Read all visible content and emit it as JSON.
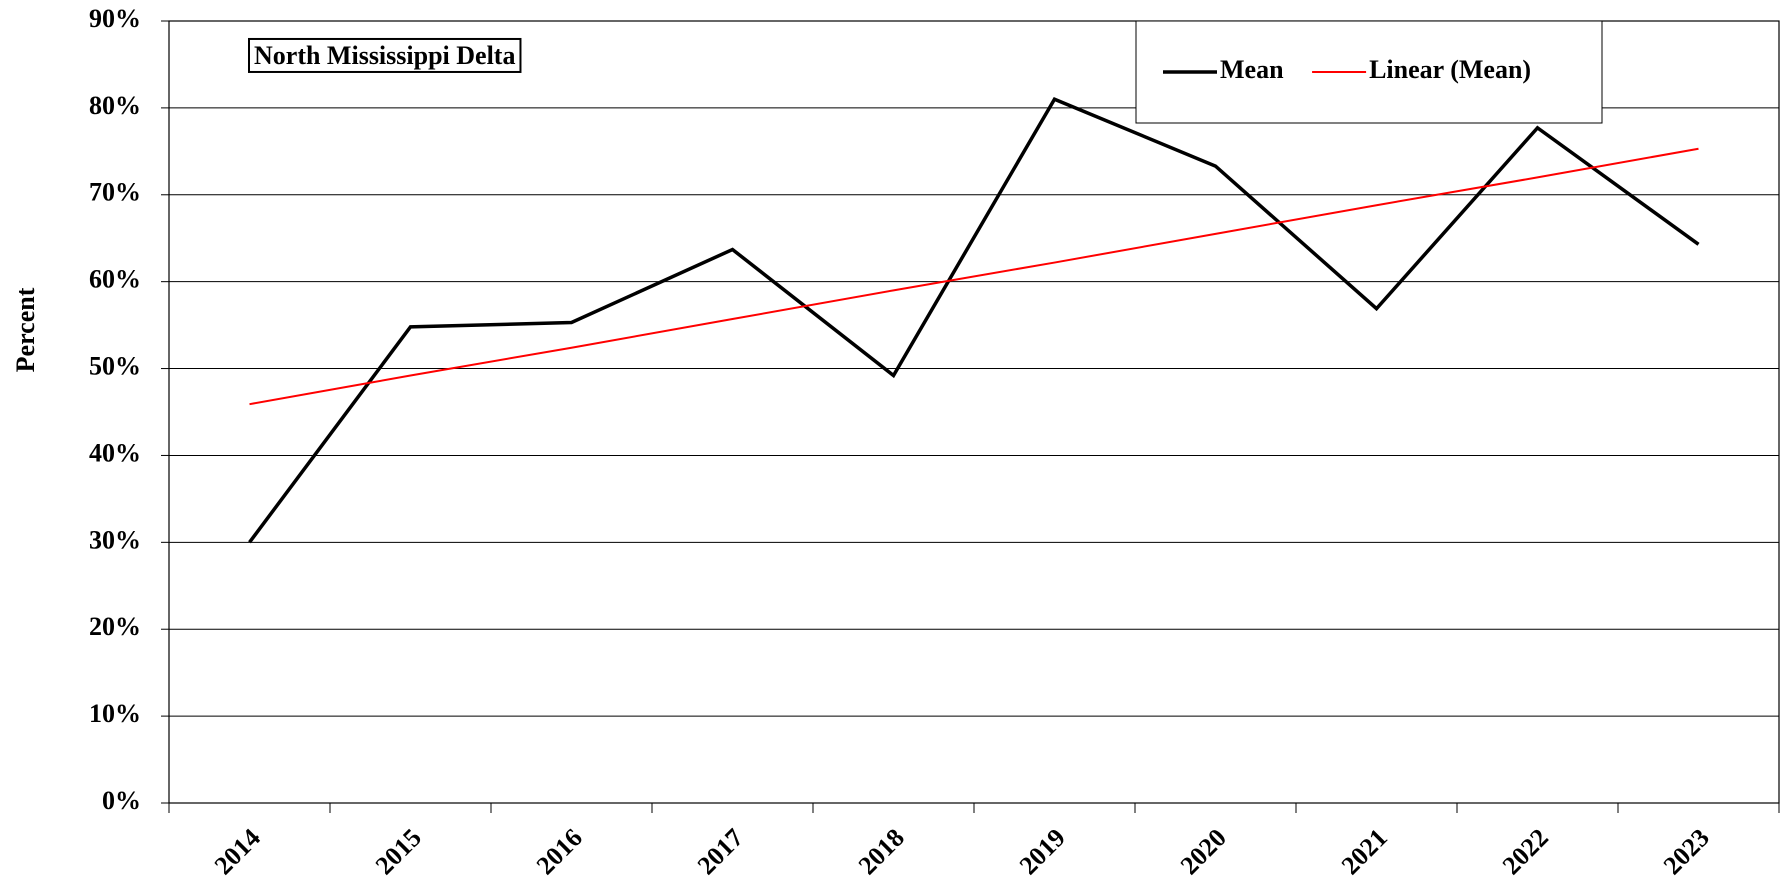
{
  "chart_data": {
    "type": "line",
    "annotation": "North Mississippi Delta",
    "y_label": "Percent",
    "categories": [
      "2014",
      "2015",
      "2016",
      "2017",
      "2018",
      "2019",
      "2020",
      "2021",
      "2022",
      "2023"
    ],
    "series": [
      {
        "name": "Mean",
        "color": "#000000",
        "values": [
          30.0,
          54.8,
          55.3,
          63.7,
          49.2,
          81.0,
          73.3,
          56.9,
          77.7,
          64.3
        ]
      },
      {
        "name": "Linear (Mean)",
        "color": "#ff0000",
        "values": [
          45.9,
          49.2,
          52.4,
          55.7,
          59.0,
          62.2,
          65.5,
          68.8,
          72.0,
          75.3
        ]
      }
    ],
    "ylim": [
      0,
      90
    ],
    "yticks": [
      {
        "value": 0,
        "label": "0%"
      },
      {
        "value": 10,
        "label": "10%"
      },
      {
        "value": 20,
        "label": "20%"
      },
      {
        "value": 30,
        "label": "30%"
      },
      {
        "value": 40,
        "label": "40%"
      },
      {
        "value": 50,
        "label": "50%"
      },
      {
        "value": 60,
        "label": "60%"
      },
      {
        "value": 70,
        "label": "70%"
      },
      {
        "value": 80,
        "label": "80%"
      },
      {
        "value": 90,
        "label": "90%"
      }
    ],
    "grid": true,
    "legend": "top-right"
  }
}
